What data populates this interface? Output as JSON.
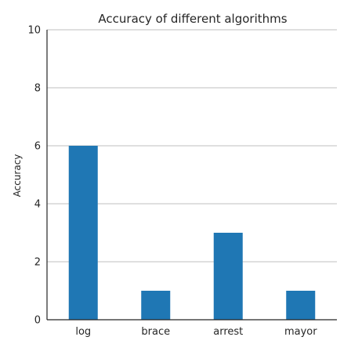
{
  "chart_data": {
    "type": "bar",
    "title": "Accuracy of different algorithms",
    "xlabel": "",
    "ylabel": "Accuracy",
    "categories": [
      "log",
      "brace",
      "arrest",
      "mayor"
    ],
    "values": [
      6,
      1,
      3,
      1
    ],
    "ylim": [
      0,
      10
    ],
    "yticks": [
      0,
      2,
      4,
      6,
      8,
      10
    ],
    "grid": "horizontal",
    "bar_color": "#1f77b4"
  }
}
